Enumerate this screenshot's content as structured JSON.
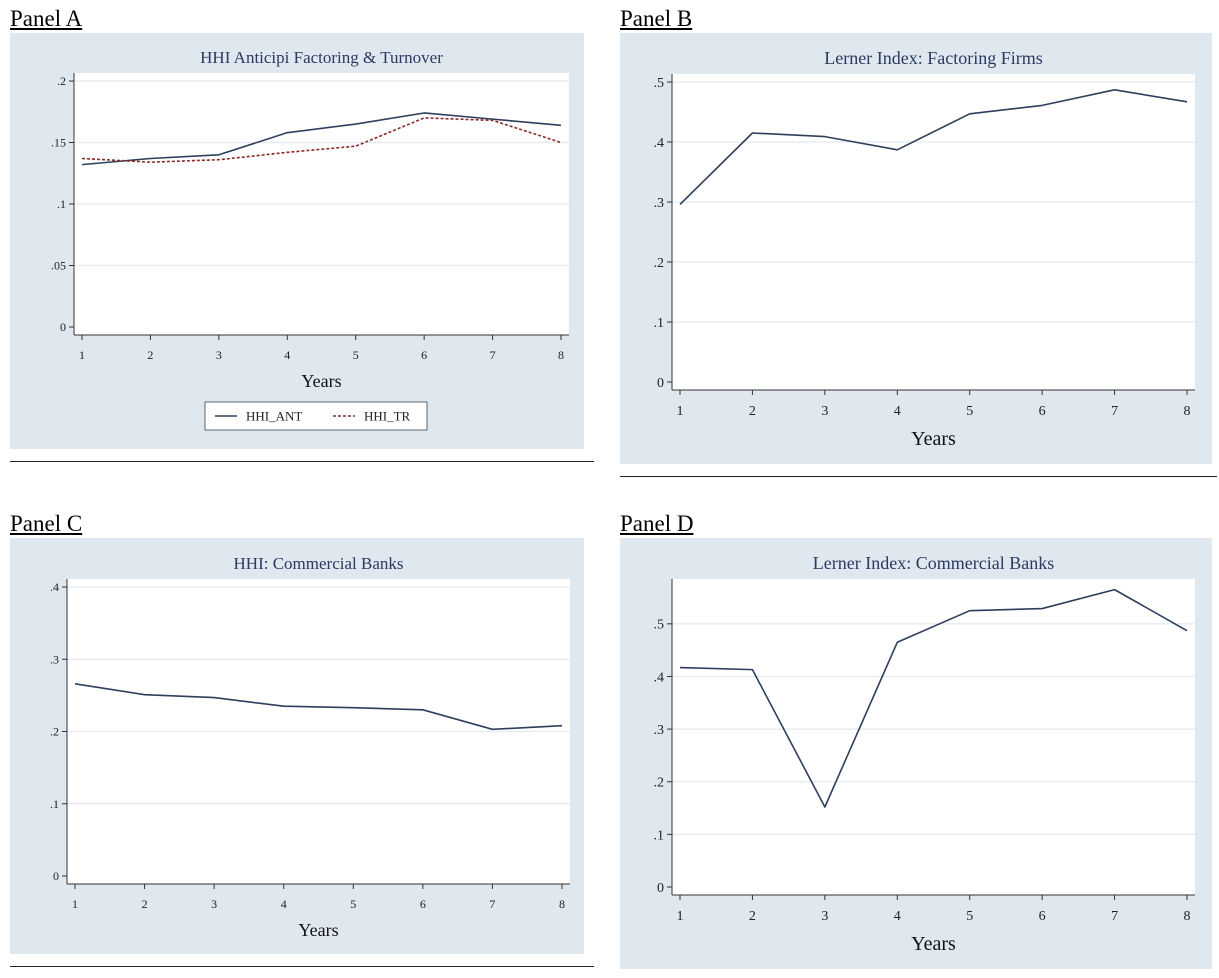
{
  "panels": [
    {
      "label": "Panel A"
    },
    {
      "label": "Panel B"
    },
    {
      "label": "Panel C"
    },
    {
      "label": "Panel D"
    }
  ],
  "colors": {
    "frame": "#dfe7ef",
    "plot_bg": "#ffffff",
    "grid": "#e4e9ef",
    "line_navy": "#2e3e5c",
    "line_red": "#8b2a2a"
  },
  "chart_data": [
    {
      "type": "line",
      "title": "HHI Anticipi Factoring & Turnover",
      "xlabel": "Years",
      "ylabel": "",
      "x": [
        1,
        2,
        3,
        4,
        5,
        6,
        7,
        8
      ],
      "ylim": [
        0,
        0.2
      ],
      "yticks": [
        0,
        0.05,
        0.1,
        0.15,
        0.2
      ],
      "ytick_labels": [
        "0",
        ".05",
        ".1",
        ".15",
        ".2"
      ],
      "series": [
        {
          "name": "HHI_ANT",
          "style": "solid",
          "color": "#2e3e5c",
          "values": [
            0.132,
            0.137,
            0.14,
            0.158,
            0.165,
            0.174,
            0.169,
            0.164
          ]
        },
        {
          "name": "HHI_TR",
          "style": "dashed",
          "color": "#8b2a2a",
          "values": [
            0.137,
            0.134,
            0.136,
            0.142,
            0.147,
            0.17,
            0.168,
            0.15
          ]
        }
      ],
      "legend": "bottom",
      "grid": true
    },
    {
      "type": "line",
      "title": "Lerner Index: Factoring Firms",
      "xlabel": "Years",
      "ylabel": "",
      "x": [
        1,
        2,
        3,
        4,
        5,
        6,
        7,
        8
      ],
      "ylim": [
        0,
        0.5
      ],
      "yticks": [
        0,
        0.1,
        0.2,
        0.3,
        0.4,
        0.5
      ],
      "ytick_labels": [
        "0",
        ".1",
        ".2",
        ".3",
        ".4",
        ".5"
      ],
      "series": [
        {
          "style": "solid",
          "color": "#2e3e5c",
          "values": [
            0.296,
            0.415,
            0.409,
            0.387,
            0.447,
            0.461,
            0.487,
            0.467
          ]
        }
      ],
      "grid": true
    },
    {
      "type": "line",
      "title": "HHI: Commercial Banks",
      "xlabel": "Years",
      "ylabel": "",
      "x": [
        1,
        2,
        3,
        4,
        5,
        6,
        7,
        8
      ],
      "ylim": [
        0,
        0.4
      ],
      "yticks": [
        0,
        0.1,
        0.2,
        0.3,
        0.4
      ],
      "ytick_labels": [
        "0",
        ".1",
        ".2",
        ".3",
        ".4"
      ],
      "series": [
        {
          "style": "solid",
          "color": "#2e3e5c",
          "values": [
            0.266,
            0.251,
            0.247,
            0.235,
            0.233,
            0.23,
            0.203,
            0.208
          ]
        }
      ],
      "grid": true
    },
    {
      "type": "line",
      "title": "Lerner Index: Commercial Banks",
      "xlabel": "Years",
      "ylabel": "",
      "x": [
        1,
        2,
        3,
        4,
        5,
        6,
        7,
        8
      ],
      "ylim": [
        0,
        0.57
      ],
      "yticks": [
        0,
        0.1,
        0.2,
        0.3,
        0.4,
        0.5
      ],
      "ytick_labels": [
        "0",
        ".1",
        ".2",
        ".3",
        ".4",
        ".5"
      ],
      "series": [
        {
          "style": "solid",
          "color": "#2e3e5c",
          "values": [
            0.417,
            0.413,
            0.152,
            0.465,
            0.525,
            0.529,
            0.565,
            0.487
          ]
        }
      ],
      "grid": true
    }
  ]
}
